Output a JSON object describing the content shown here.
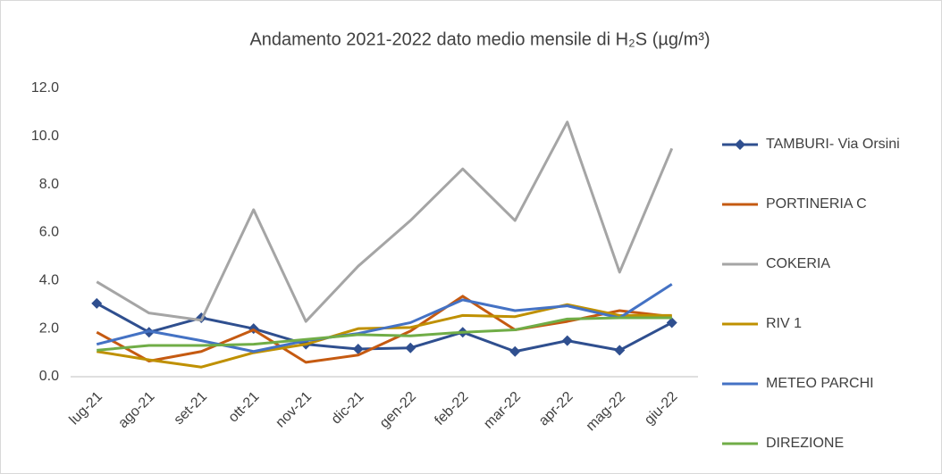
{
  "chart_data": {
    "type": "line",
    "title": "Andamento 2021-2022 dato medio mensile di H₂S (µg/m³)",
    "categories": [
      "lug-21",
      "ago-21",
      "set-21",
      "ott-21",
      "nov-21",
      "dic-21",
      "gen-22",
      "feb-22",
      "mar-22",
      "apr-22",
      "mag-22",
      "giu-22"
    ],
    "series": [
      {
        "name": "TAMBURI- Via Orsini",
        "color": "#2f4f8f",
        "marker": "diamond",
        "values": [
          3.05,
          1.85,
          2.45,
          2.0,
          1.35,
          1.15,
          1.2,
          1.85,
          1.05,
          1.5,
          1.1,
          2.25
        ]
      },
      {
        "name": "PORTINERIA C",
        "color": "#c55a11",
        "values": [
          1.85,
          0.65,
          1.05,
          1.95,
          0.6,
          0.9,
          1.9,
          3.35,
          1.95,
          2.3,
          2.75,
          2.5
        ]
      },
      {
        "name": "COKERIA",
        "color": "#a5a5a5",
        "values": [
          3.95,
          2.65,
          2.35,
          6.95,
          2.3,
          4.6,
          6.5,
          8.65,
          6.5,
          10.6,
          4.35,
          9.5
        ]
      },
      {
        "name": "RIV 1",
        "color": "#bf9000",
        "values": [
          1.05,
          0.7,
          0.4,
          1.0,
          1.35,
          2.0,
          2.05,
          2.55,
          2.5,
          3.0,
          2.55,
          2.55
        ]
      },
      {
        "name": "METEO PARCHI",
        "color": "#4472c4",
        "values": [
          1.35,
          1.9,
          1.5,
          1.05,
          1.5,
          1.8,
          2.25,
          3.2,
          2.75,
          2.95,
          2.45,
          3.85
        ]
      },
      {
        "name": "DIREZIONE",
        "color": "#70ad47",
        "values": [
          1.1,
          1.3,
          1.3,
          1.35,
          1.55,
          1.75,
          1.7,
          1.85,
          1.95,
          2.4,
          2.45,
          2.45
        ]
      }
    ],
    "ylim": [
      0,
      12
    ],
    "yticks": [
      {
        "value": 0,
        "label": "0.0"
      },
      {
        "value": 2,
        "label": "2.0"
      },
      {
        "value": 4,
        "label": "4.0"
      },
      {
        "value": 6,
        "label": "6.0"
      },
      {
        "value": 8,
        "label": "8.0"
      },
      {
        "value": 10,
        "label": "10.0"
      },
      {
        "value": 12,
        "label": "12.0"
      }
    ],
    "grid": false,
    "legend": "right"
  }
}
